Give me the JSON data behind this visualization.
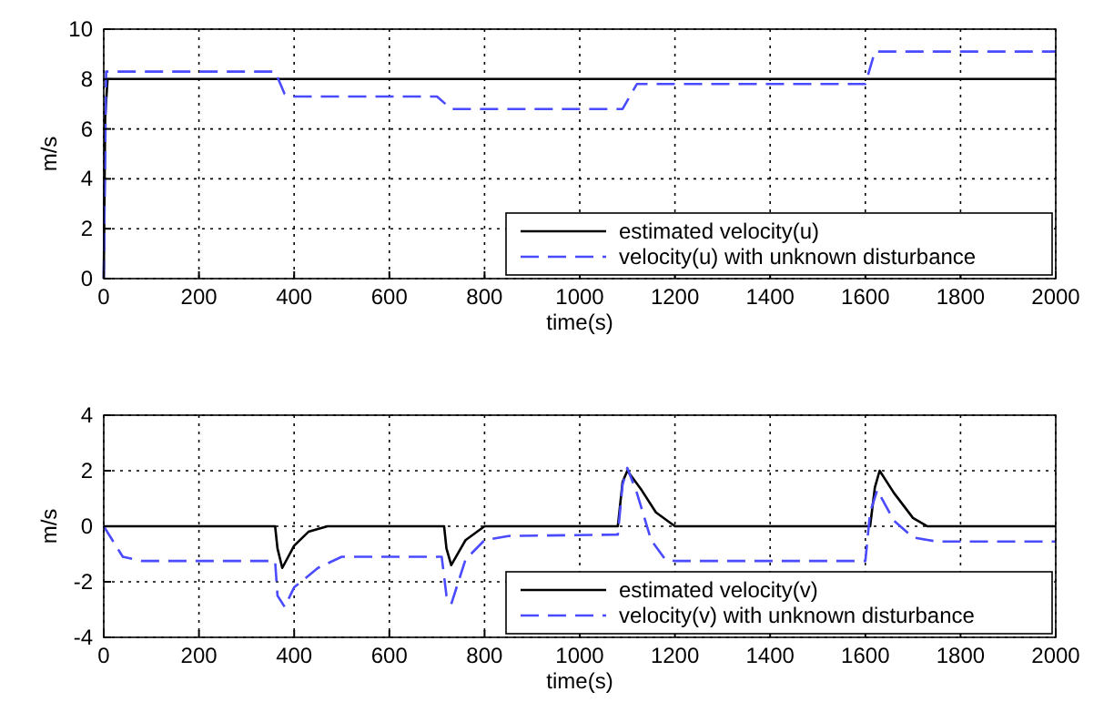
{
  "chart_data": [
    {
      "type": "line",
      "xlabel": "time(s)",
      "ylabel": "m/s",
      "xlim": [
        0,
        2000
      ],
      "ylim": [
        0,
        10
      ],
      "xticks": [
        0,
        200,
        400,
        600,
        800,
        1000,
        1200,
        1400,
        1600,
        1800,
        2000
      ],
      "yticks": [
        0,
        2,
        4,
        6,
        8,
        10
      ],
      "grid": true,
      "legend": "bottom right",
      "marker": "none",
      "series": [
        {
          "name": "estimated velocity(u)",
          "color": "#000000",
          "line_style": "solid",
          "x": [
            0,
            3,
            8,
            2000
          ],
          "values": [
            0,
            6.5,
            8,
            8
          ]
        },
        {
          "name": "velocity(u) with unknown disturbance",
          "color": "#4a4aff",
          "line_style": "dashed",
          "x": [
            0,
            5,
            360,
            380,
            400,
            700,
            730,
            1090,
            1120,
            1600,
            1620,
            2000
          ],
          "values": [
            0,
            8.3,
            8.3,
            7.4,
            7.3,
            7.3,
            6.8,
            6.8,
            7.8,
            7.8,
            9.1,
            9.1
          ]
        }
      ]
    },
    {
      "type": "line",
      "xlabel": "time(s)",
      "ylabel": "m/s",
      "xlim": [
        0,
        2000
      ],
      "ylim": [
        -4,
        4
      ],
      "xticks": [
        0,
        200,
        400,
        600,
        800,
        1000,
        1200,
        1400,
        1600,
        1800,
        2000
      ],
      "yticks": [
        -4,
        -2,
        0,
        2,
        4
      ],
      "grid": true,
      "legend": "bottom right",
      "marker": "none",
      "series": [
        {
          "name": "estimated velocity(v)",
          "color": "#000000",
          "line_style": "solid",
          "x": [
            0,
            360,
            365,
            375,
            400,
            430,
            470,
            715,
            720,
            730,
            760,
            800,
            1080,
            1090,
            1100,
            1130,
            1160,
            1200,
            1610,
            1620,
            1630,
            1660,
            1700,
            1730,
            2000
          ],
          "values": [
            0,
            0,
            -0.8,
            -1.5,
            -0.7,
            -0.2,
            0,
            0,
            -0.8,
            -1.4,
            -0.5,
            0,
            0,
            1.6,
            2,
            1.3,
            0.5,
            0,
            0,
            1.4,
            2,
            1.2,
            0.3,
            0,
            0
          ]
        },
        {
          "name": "velocity(v) with unknown disturbance",
          "color": "#4a4aff",
          "line_style": "dashed",
          "x": [
            0,
            40,
            80,
            360,
            365,
            380,
            400,
            450,
            500,
            710,
            720,
            730,
            760,
            800,
            850,
            1080,
            1090,
            1100,
            1120,
            1150,
            1180,
            1200,
            1600,
            1610,
            1625,
            1660,
            1700,
            1750,
            2000
          ],
          "values": [
            0,
            -1.1,
            -1.25,
            -1.25,
            -2.5,
            -2.9,
            -2.2,
            -1.5,
            -1.1,
            -1.1,
            -2.5,
            -2.8,
            -1.2,
            -0.5,
            -0.35,
            -0.3,
            1.5,
            2.1,
            1.2,
            -0.5,
            -1.2,
            -1.25,
            -1.25,
            0.5,
            1.3,
            0.2,
            -0.4,
            -0.55,
            -0.55
          ]
        }
      ]
    }
  ]
}
